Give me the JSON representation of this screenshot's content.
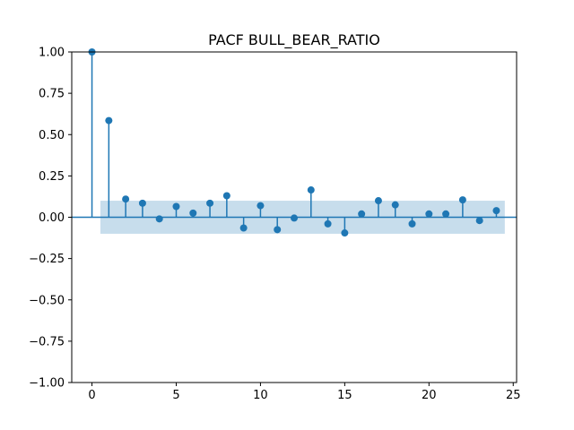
{
  "chart_data": {
    "type": "stem",
    "title": "PACF BULL_BEAR_RATIO",
    "xlabel": "",
    "ylabel": "",
    "xlim": [
      -1.2,
      25.2
    ],
    "ylim": [
      -1.0,
      1.0
    ],
    "x_ticks": [
      0,
      5,
      10,
      15,
      20,
      25
    ],
    "y_ticks": [
      -1.0,
      -0.75,
      -0.5,
      -0.25,
      0.0,
      0.25,
      0.5,
      0.75,
      1.0
    ],
    "x_tick_labels": [
      "0",
      "5",
      "10",
      "15",
      "20",
      "25"
    ],
    "y_tick_labels": [
      "−1.00",
      "−0.75",
      "−0.50",
      "−0.25",
      "0.00",
      "0.25",
      "0.50",
      "0.75",
      "1.00"
    ],
    "lags": [
      0,
      1,
      2,
      3,
      4,
      5,
      6,
      7,
      8,
      9,
      10,
      11,
      12,
      13,
      14,
      15,
      16,
      17,
      18,
      19,
      20,
      21,
      22,
      23,
      24
    ],
    "values": [
      1.0,
      0.585,
      0.11,
      0.085,
      -0.01,
      0.065,
      0.025,
      0.085,
      0.13,
      -0.065,
      0.07,
      -0.075,
      -0.005,
      0.165,
      -0.04,
      -0.095,
      0.02,
      0.1,
      0.075,
      -0.04,
      0.02,
      0.02,
      0.105,
      -0.02,
      0.04
    ],
    "confidence_band": {
      "x_range": [
        0.5,
        24.5
      ],
      "lower": -0.1,
      "upper": 0.1
    },
    "grid": false,
    "colors": {
      "stem": "#1f77b4",
      "band": "#1f77b4",
      "zero_line": "#1f77b4"
    }
  }
}
